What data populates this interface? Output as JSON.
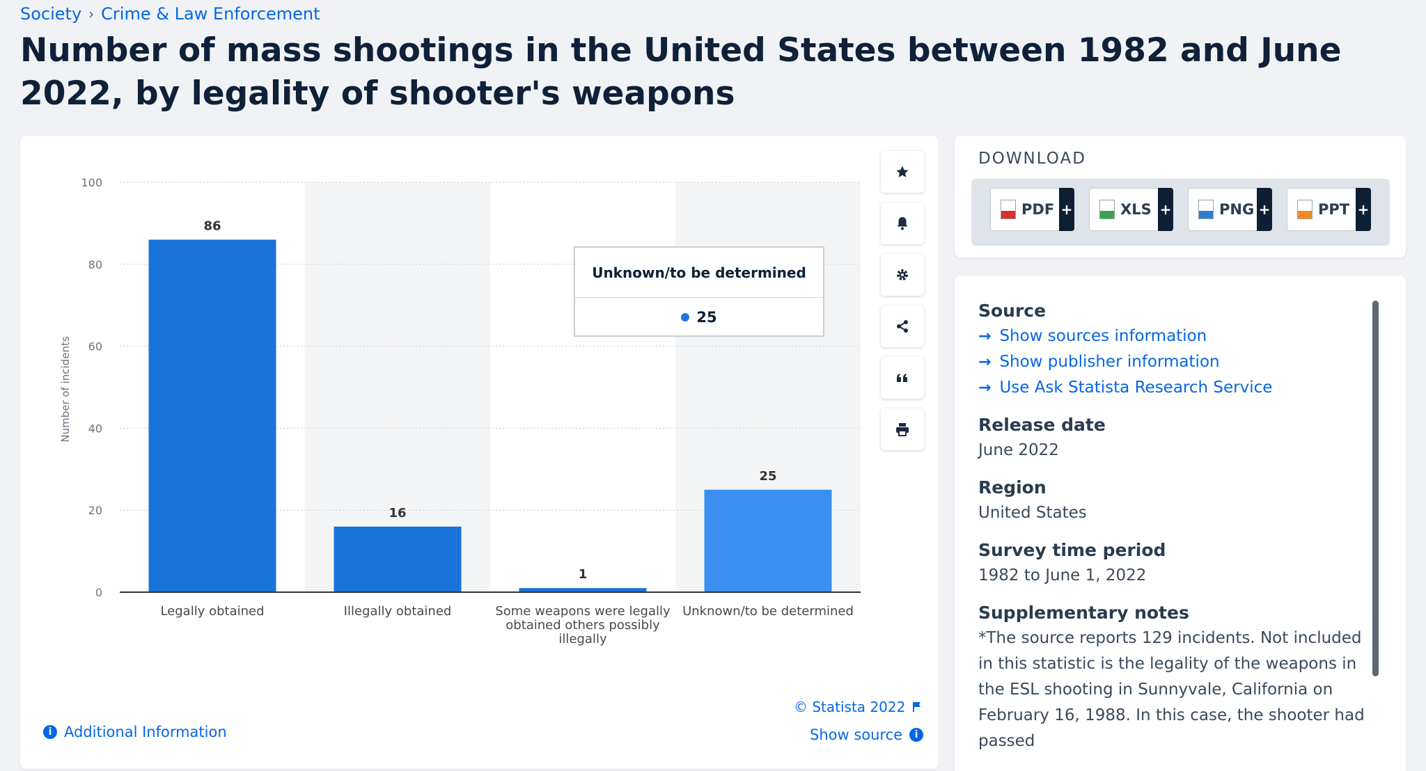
{
  "breadcrumb": {
    "items": [
      "Society",
      "Crime & Law Enforcement"
    ],
    "separator": "›"
  },
  "title": "Number of mass shootings in the United States between 1982 and June 2022, by legality of shooter's weapons",
  "chart_data": {
    "type": "bar",
    "categories": [
      "Legally obtained",
      "Illegally obtained",
      "Some weapons were legally obtained others possibly illegally",
      "Unknown/to be determined"
    ],
    "category_lines": [
      [
        "Legally obtained"
      ],
      [
        "Illegally obtained"
      ],
      [
        "Some weapons were legally",
        "obtained others possibly",
        "illegally"
      ],
      [
        "Unknown/to be determined"
      ]
    ],
    "values": [
      86,
      16,
      1,
      25
    ],
    "ylabel": "Number of incidents",
    "ylim": [
      0,
      100
    ],
    "yticks": [
      0,
      20,
      40,
      60,
      80,
      100
    ],
    "grid": true,
    "highlighted_category": "Unknown/to be determined",
    "colors": {
      "bar": "#1a73d9",
      "bar_hover": "#3a8ff0",
      "band": "#f4f5f6",
      "grid": "#c8ccd0",
      "axis": "#333333"
    }
  },
  "tooltip": {
    "title": "Unknown/to be determined",
    "value": "25",
    "dot_color": "#1f77e0"
  },
  "tools": [
    "star-icon",
    "bell-icon",
    "gear-icon",
    "share-icon",
    "quote-icon",
    "print-icon"
  ],
  "credit": "© Statista 2022",
  "show_source": "Show source",
  "additional_info": "Additional Information",
  "download": {
    "title": "DOWNLOAD",
    "buttons": [
      {
        "label": "PDF",
        "color": "#d9302c"
      },
      {
        "label": "XLS",
        "color": "#3fa34d"
      },
      {
        "label": "PNG",
        "color": "#2f7fd1"
      },
      {
        "label": "PPT",
        "color": "#f08a24"
      }
    ],
    "plus": "+"
  },
  "info": {
    "source_head": "Source",
    "links": [
      "Show sources information",
      "Show publisher information",
      "Use Ask Statista Research Service"
    ],
    "release_head": "Release date",
    "release": "June 2022",
    "region_head": "Region",
    "region": "United States",
    "period_head": "Survey time period",
    "period": "1982 to June 1, 2022",
    "notes_head": "Supplementary notes",
    "notes": "*The source reports 129 incidents. Not included in this statistic is the legality of the weapons in the ESL shooting in Sunnyvale, California on February 16, 1988. In this case, the shooter had passed"
  }
}
